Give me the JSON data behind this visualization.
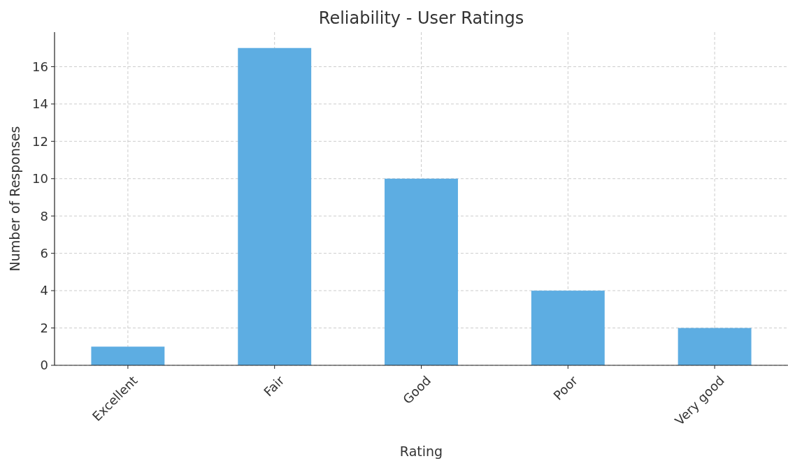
{
  "chart_data": {
    "type": "bar",
    "title": "Reliability - User Ratings",
    "xlabel": "Rating",
    "ylabel": "Number of Responses",
    "categories": [
      "Excellent",
      "Fair",
      "Good",
      "Poor",
      "Very good"
    ],
    "values": [
      1,
      17,
      10,
      4,
      2
    ],
    "color": "#5dade2",
    "ylim": [
      0,
      17.85
    ],
    "yticks": [
      0,
      2,
      4,
      6,
      8,
      10,
      12,
      14,
      16
    ],
    "grid": true
  }
}
